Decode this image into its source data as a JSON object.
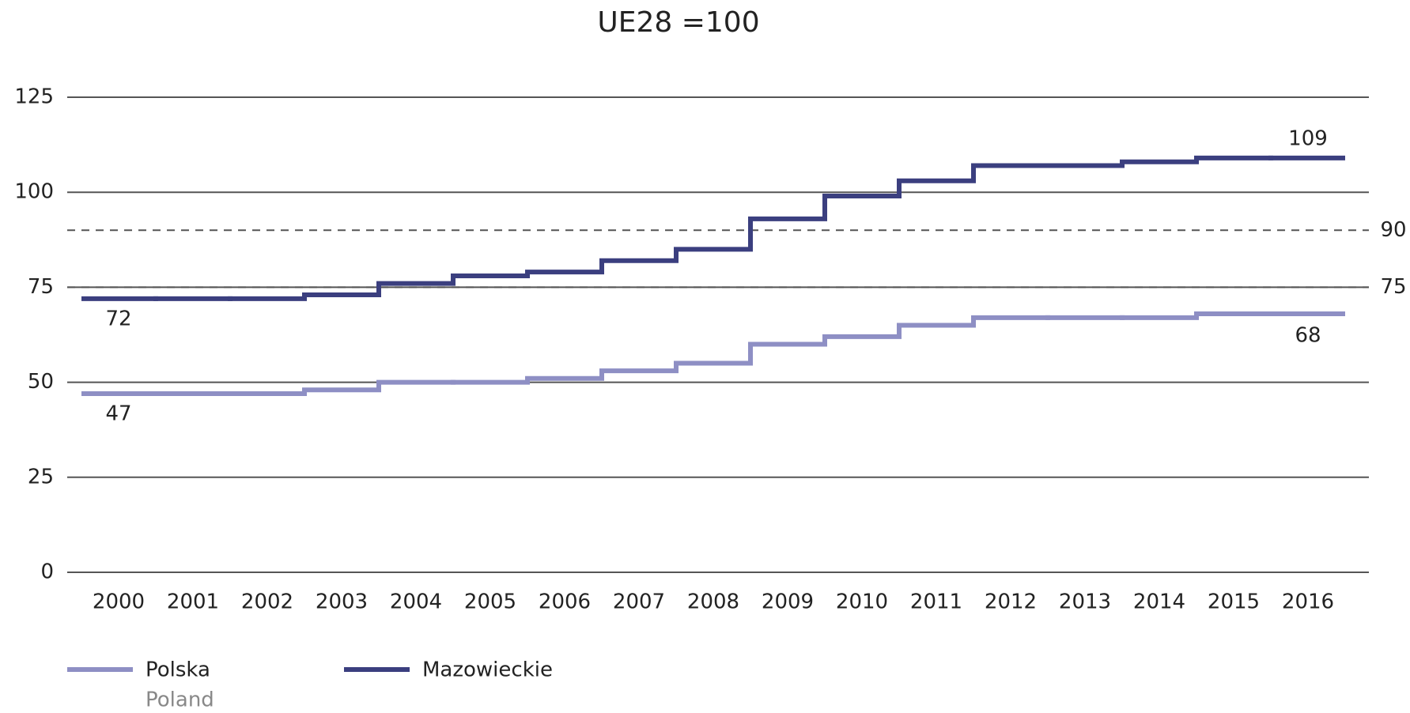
{
  "chart_data": {
    "type": "step",
    "title": "UE28 =100",
    "categories": [
      "2000",
      "2001",
      "2002",
      "2003",
      "2004",
      "2005",
      "2006",
      "2007",
      "2008",
      "2009",
      "2010",
      "2011",
      "2012",
      "2013",
      "2014",
      "2015",
      "2016"
    ],
    "series": [
      {
        "name": "Polska",
        "name_en": "Poland",
        "color": "#8e8fc4",
        "values": [
          47,
          47,
          47,
          48,
          50,
          50,
          51,
          53,
          55,
          60,
          62,
          65,
          67,
          67,
          67,
          68,
          68
        ]
      },
      {
        "name": "Mazowieckie",
        "color": "#3b3f7f",
        "values": [
          72,
          72,
          72,
          73,
          76,
          78,
          79,
          82,
          85,
          93,
          99,
          103,
          107,
          107,
          108,
          109,
          109
        ]
      }
    ],
    "ylim": [
      0,
      125
    ],
    "yticks": [
      0,
      25,
      50,
      75,
      100,
      125
    ],
    "grid": true,
    "reference_lines": [
      90,
      75
    ],
    "legend": "bottom-left"
  }
}
